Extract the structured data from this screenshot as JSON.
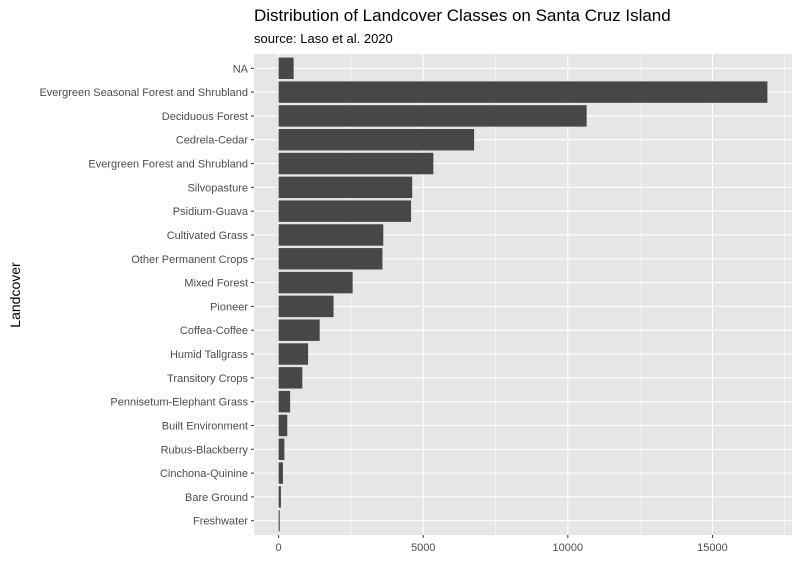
{
  "chart_data": {
    "type": "bar",
    "orientation": "horizontal",
    "title": "Distribution of Landcover Classes on Santa Cruz Island",
    "subtitle": "source: Laso et al. 2020",
    "ylabel": "Landcover",
    "xlabel": "",
    "categories": [
      "NA",
      "Evergreen Seasonal Forest and Shrubland",
      "Deciduous Forest",
      "Cedrela-Cedar",
      "Evergreen Forest and Shrubland",
      "Silvopasture",
      "Psidium-Guava",
      "Cultivated Grass",
      "Other Permanent Crops",
      "Mixed Forest",
      "Pioneer",
      "Coffea-Coffee",
      "Humid Tallgrass",
      "Transitory Crops",
      "Pennisetum-Elephant Grass",
      "Built Environment",
      "Rubus-Blackberry",
      "Cinchona-Quinine",
      "Bare Ground",
      "Freshwater"
    ],
    "values": [
      520,
      16900,
      10650,
      6760,
      5350,
      4620,
      4580,
      3620,
      3590,
      2560,
      1900,
      1420,
      1020,
      820,
      400,
      300,
      200,
      150,
      80,
      40
    ],
    "x_ticks": [
      0,
      5000,
      10000,
      15000
    ],
    "x_tick_labels": [
      "0",
      "5000",
      "10000",
      "15000"
    ],
    "xlim": [
      -850,
      17750
    ],
    "grid": true,
    "legend": "none",
    "colors": {
      "bar": "#474747",
      "panel": "#e6e6e6",
      "grid_major": "#ffffff",
      "tick_text": "#4d4d4d"
    }
  }
}
